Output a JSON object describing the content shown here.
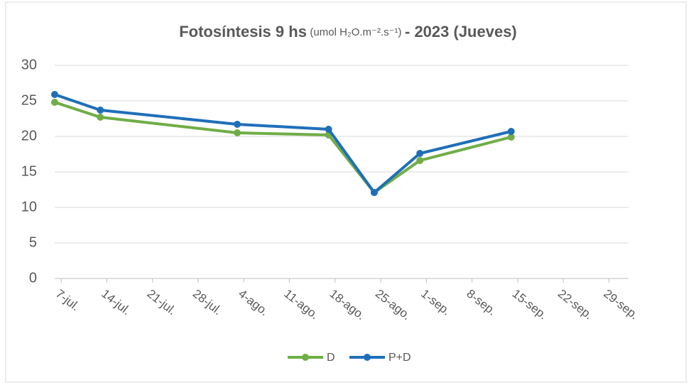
{
  "chart_data": {
    "type": "line",
    "title": {
      "main": "Fotosíntesis 9 hs",
      "units": "(umol H₂O.m⁻².s⁻¹)",
      "tail": "- 2023 (Jueves)"
    },
    "x": [
      "07-06",
      "07-13",
      "08-03",
      "08-17",
      "08-24",
      "08-31",
      "09-14"
    ],
    "series": [
      {
        "name": "D",
        "color": "#70ad47",
        "values": [
          24.8,
          22.7,
          20.5,
          20.2,
          12.1,
          16.6,
          19.9
        ]
      },
      {
        "name": "P+D",
        "color": "#1f6fb8",
        "values": [
          25.9,
          23.7,
          21.7,
          21.0,
          12.1,
          17.6,
          20.7
        ]
      }
    ],
    "xlim": [
      "07-06",
      "10-02"
    ],
    "xticks": [
      {
        "value": "07-07",
        "label": "7-jul."
      },
      {
        "value": "07-14",
        "label": "14-jul."
      },
      {
        "value": "07-21",
        "label": "21-jul."
      },
      {
        "value": "07-28",
        "label": "28-jul."
      },
      {
        "value": "08-04",
        "label": "4-ago."
      },
      {
        "value": "08-11",
        "label": "11-ago."
      },
      {
        "value": "08-18",
        "label": "18-ago."
      },
      {
        "value": "08-25",
        "label": "25-ago."
      },
      {
        "value": "09-01",
        "label": "1-sep."
      },
      {
        "value": "09-08",
        "label": "8-sep."
      },
      {
        "value": "09-15",
        "label": "15-sep."
      },
      {
        "value": "09-22",
        "label": "22-sep."
      },
      {
        "value": "09-29",
        "label": "29-sep."
      }
    ],
    "ylim": [
      0,
      30
    ],
    "yticks": [
      0,
      5,
      10,
      15,
      20,
      25,
      30
    ],
    "grid": true,
    "legend": "bottom"
  }
}
